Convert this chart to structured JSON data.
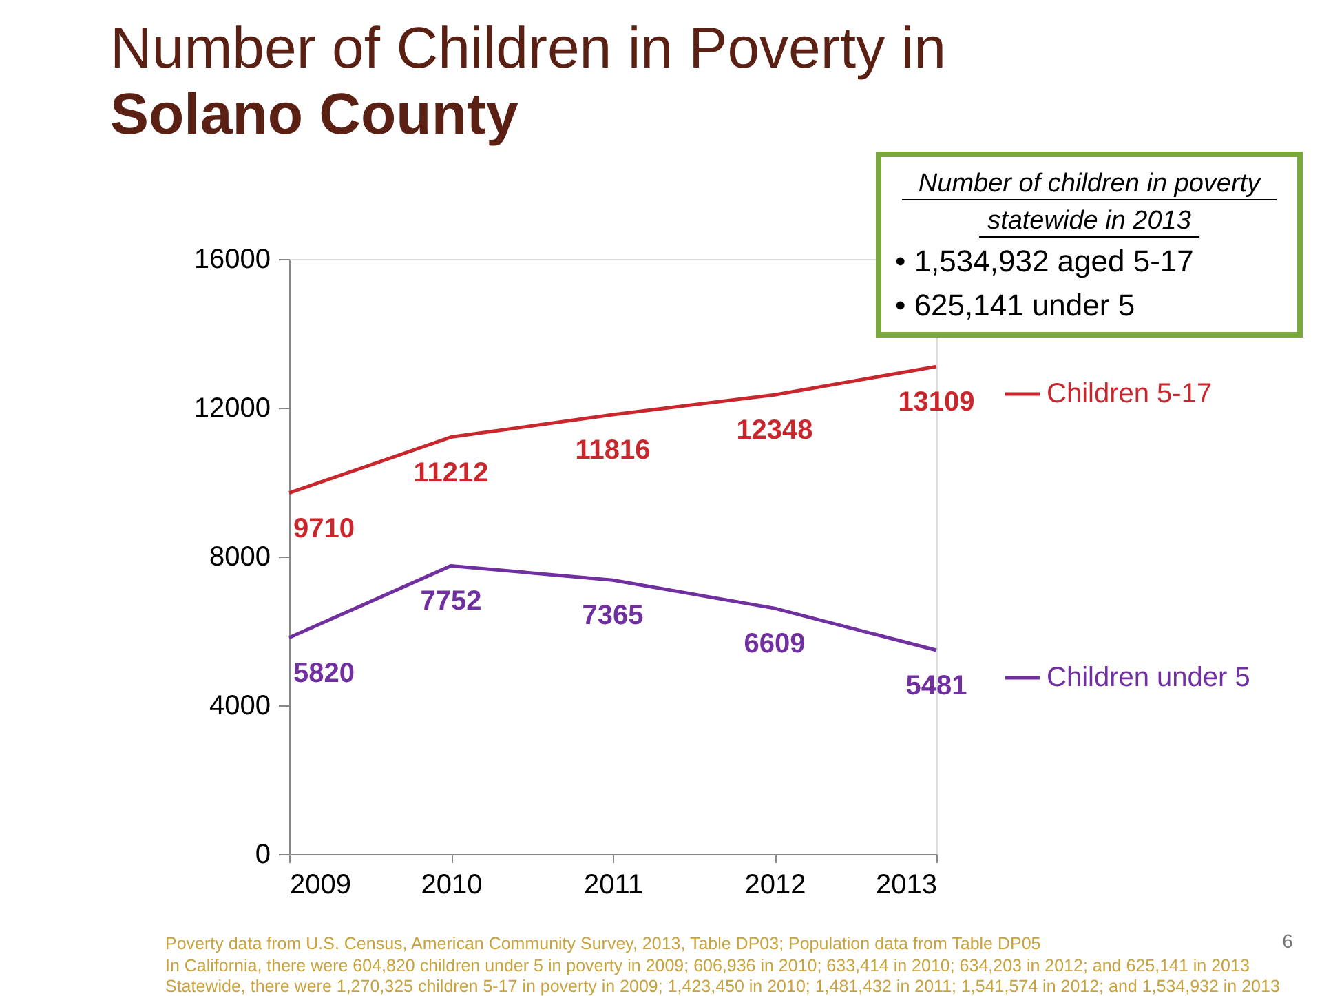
{
  "chart_data": {
    "type": "line",
    "title": "Number of Children in Poverty in",
    "subtitle": "Solano County",
    "x": [
      2009,
      2010,
      2011,
      2012,
      2013
    ],
    "xlim": [
      2009,
      2013
    ],
    "xticks": [
      2009,
      2010,
      2011,
      2012,
      2013
    ],
    "ylim": [
      0,
      16000
    ],
    "yticks": [
      0,
      4000,
      8000,
      12000,
      16000
    ],
    "series": [
      {
        "name": "Children 5-17",
        "color": "#c8282d",
        "values": [
          9710,
          11212,
          11816,
          12348,
          13109
        ]
      },
      {
        "name": "Children under 5",
        "color": "#7030a0",
        "values": [
          5820,
          7752,
          7365,
          6609,
          5481
        ]
      }
    ],
    "data_labels": true,
    "legend": "right",
    "grid": false,
    "marker": "none",
    "line_style": "solid",
    "annotations": [
      "Number of children in poverty",
      "statewide in 2013",
      "•   1,534,932 aged 5-17",
      "•   625,141 under 5",
      "Poverty data from U.S. Census, American Community Survey, 2013, Table DP03; Population data from Table DP05",
      "In California, there were 604,820 children under 5 in poverty in 2009; 606,936 in 2010; 633,414 in 2010; 634,203 in 2012; and 625,141 in 2013",
      "Statewide, there were 1,270,325 children 5-17 in  poverty in 2009; 1,423,450 in 2010; 1,481,432 in 2011; 1,541,574 in 2012; and 1,534,932 in 2013",
      "6"
    ]
  }
}
